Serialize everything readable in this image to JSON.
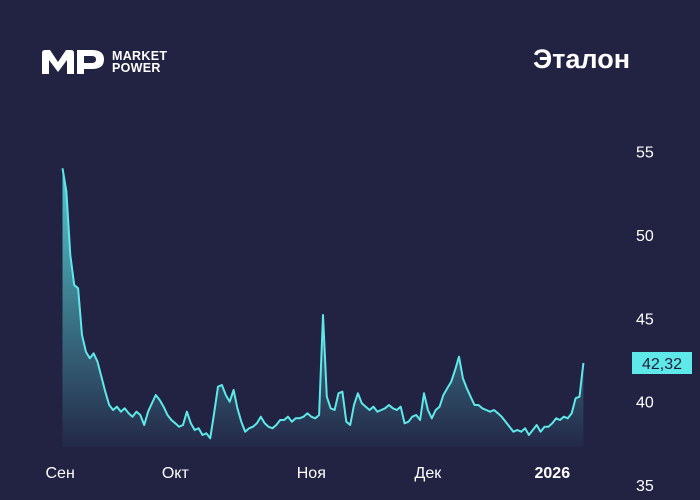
{
  "brand": {
    "line1": "MARKET",
    "line2": "POWER"
  },
  "title": "Эталон",
  "colors": {
    "background": "#222343",
    "line": "#5ee8e8",
    "text": "#ffffff",
    "badge": "#5ee8e8"
  },
  "chart_data": {
    "type": "area",
    "title": "Эталон",
    "xlabel": "",
    "ylabel": "",
    "ylim": [
      35,
      57.5
    ],
    "y_ticks": [
      55,
      50,
      45,
      40,
      35
    ],
    "y_tick_labels": [
      "55",
      "50",
      "45",
      "40",
      "35"
    ],
    "x_tick_labels": [
      "Сен",
      "Окт",
      "Ноя",
      "Дек",
      "2026"
    ],
    "x_tick_positions": [
      0,
      29,
      64,
      94,
      126
    ],
    "x_range": [
      -4,
      146
    ],
    "grid": false,
    "last_value": 42.32,
    "last_value_label": "42,32",
    "series": [
      {
        "values": [
          54.0,
          52.6,
          48.8,
          47.0,
          46.8,
          44.0,
          43.0,
          42.6,
          42.9,
          42.4,
          41.5,
          40.6,
          39.8,
          39.5,
          39.7,
          39.4,
          39.6,
          39.3,
          39.1,
          39.4,
          39.2,
          38.6,
          39.4,
          39.9,
          40.4,
          40.1,
          39.7,
          39.2,
          38.9,
          38.7,
          38.5,
          38.6,
          39.4,
          38.7,
          38.3,
          38.4,
          38.0,
          38.1,
          37.8,
          39.3,
          40.9,
          41.0,
          40.4,
          40.0,
          40.7,
          39.6,
          38.8,
          38.2,
          38.4,
          38.5,
          38.7,
          39.1,
          38.7,
          38.5,
          38.4,
          38.6,
          38.9,
          38.9,
          39.1,
          38.8,
          39.0,
          39.0,
          39.1,
          39.3,
          39.1,
          39.0,
          39.2,
          45.2,
          40.3,
          39.6,
          39.5,
          40.5,
          40.6,
          38.8,
          38.6,
          39.8,
          40.5,
          39.9,
          39.7,
          39.5,
          39.7,
          39.4,
          39.5,
          39.6,
          39.8,
          39.6,
          39.5,
          39.7,
          38.7,
          38.8,
          39.1,
          39.2,
          38.9,
          40.5,
          39.5,
          39.0,
          39.5,
          39.7,
          40.4,
          40.8,
          41.2,
          41.9,
          42.7,
          41.4,
          40.8,
          40.3,
          39.8,
          39.8,
          39.6,
          39.5,
          39.4,
          39.5,
          39.3,
          39.1,
          38.8,
          38.5,
          38.2,
          38.3,
          38.2,
          38.4,
          38.0,
          38.3,
          38.6,
          38.2,
          38.5,
          38.5,
          38.7,
          39.0,
          38.9,
          39.1,
          39.0,
          39.3,
          40.2,
          40.3,
          42.32
        ]
      }
    ]
  }
}
